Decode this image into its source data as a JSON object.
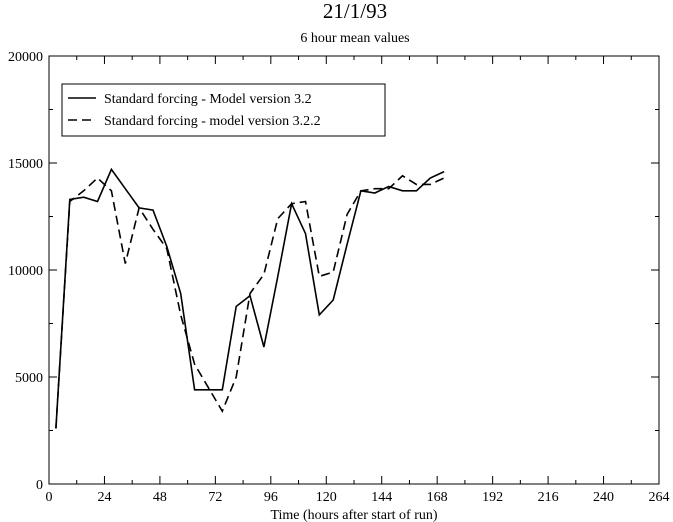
{
  "chart_data": {
    "type": "line",
    "title": "21/1/93",
    "subtitle": "6 hour mean values",
    "xlabel": "Time (hours after start of run)",
    "ylabel": "",
    "xlim": [
      0,
      264
    ],
    "ylim": [
      0,
      20000
    ],
    "xticks": [
      0,
      24,
      48,
      72,
      96,
      120,
      144,
      168,
      192,
      216,
      240,
      264
    ],
    "yticks": [
      0,
      5000,
      10000,
      15000,
      20000
    ],
    "xtick_labels": [
      "0",
      "24",
      "48",
      "72",
      "96",
      "120",
      "144",
      "168",
      "192",
      "216",
      "240",
      "264"
    ],
    "ytick_labels": [
      "0",
      "5000",
      "10000",
      "15000",
      "20000"
    ],
    "x_minor_step": 12,
    "y_minor_step": 2500,
    "grid": false,
    "legend_position": "top-left",
    "series": [
      {
        "name": "Standard forcing - Model version 3.2",
        "style": "solid",
        "color": "#000000",
        "x": [
          3,
          9,
          15,
          21,
          27,
          33,
          39,
          45,
          51,
          57,
          63,
          69,
          75,
          81,
          87,
          93,
          99,
          105,
          111,
          117,
          123,
          129,
          135,
          141,
          147,
          153,
          159,
          165,
          171
        ],
        "y": [
          2600,
          13300,
          13400,
          13200,
          14700,
          13800,
          12900,
          12800,
          11100,
          8900,
          4400,
          4400,
          4400,
          8300,
          8800,
          6400,
          9700,
          13100,
          11700,
          7900,
          8600,
          11200,
          13700,
          13600,
          13900,
          13700,
          13700,
          14300,
          14600
        ]
      },
      {
        "name": "Standard forcing - model version 3.2.2",
        "style": "dashed",
        "color": "#000000",
        "x": [
          3,
          9,
          15,
          21,
          27,
          33,
          39,
          45,
          51,
          57,
          63,
          69,
          75,
          81,
          87,
          93,
          99,
          105,
          111,
          117,
          123,
          129,
          135,
          141,
          147,
          153,
          159,
          165,
          171
        ],
        "y": [
          2600,
          13200,
          13700,
          14300,
          13700,
          10300,
          12900,
          11900,
          11000,
          7900,
          5600,
          4500,
          3400,
          5000,
          8900,
          9800,
          12400,
          13100,
          13200,
          9700,
          9900,
          12600,
          13700,
          13800,
          13800,
          14400,
          14000,
          14000,
          14300
        ]
      }
    ]
  }
}
